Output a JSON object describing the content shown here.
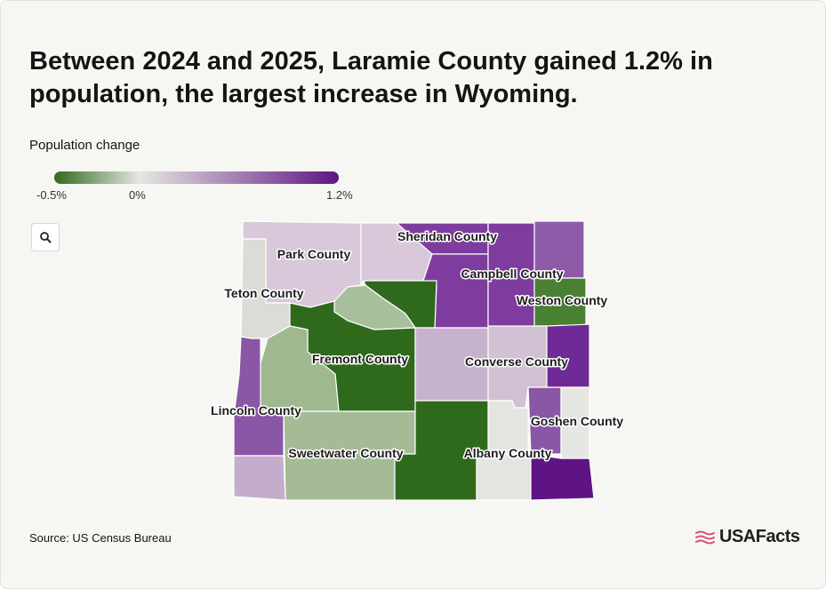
{
  "title": "Between 2024 and 2025, Laramie County gained 1.2% in population, the largest increase in Wyoming.",
  "legend": {
    "title": "Population change",
    "min_label": "-0.5%",
    "mid_label": "0%",
    "max_label": "1.2%",
    "min_color": "#2f6a1c",
    "mid_color": "#e6e6e2",
    "max_color": "#5e1583"
  },
  "zoom": {
    "icon": "search-icon"
  },
  "map": {
    "region": "Wyoming",
    "counties": [
      {
        "id": "park",
        "label": "Park County",
        "color": "#d9c8da"
      },
      {
        "id": "bighorn",
        "label": "",
        "color": "#d9c8da"
      },
      {
        "id": "sheridan",
        "label": "Sheridan County",
        "color": "#7e3d9e"
      },
      {
        "id": "johnson",
        "label": "",
        "color": "#7e3d9e"
      },
      {
        "id": "campbell",
        "label": "Campbell County",
        "color": "#7e3d9e"
      },
      {
        "id": "crook",
        "label": "",
        "color": "#8e5aa8"
      },
      {
        "id": "weston",
        "label": "Weston County",
        "color": "#4a8032"
      },
      {
        "id": "teton",
        "label": "Teton County",
        "color": "#dcdcd6"
      },
      {
        "id": "washakie",
        "label": "",
        "color": "#2f6a1c"
      },
      {
        "id": "hotsprings",
        "label": "",
        "color": "#a8bf9c"
      },
      {
        "id": "fremont",
        "label": "Fremont County",
        "color": "#2f6a1c"
      },
      {
        "id": "natrona",
        "label": "",
        "color": "#c6b2cc"
      },
      {
        "id": "converse",
        "label": "Converse County",
        "color": "#d2c0d4"
      },
      {
        "id": "niobrara",
        "label": "",
        "color": "#6f2a96"
      },
      {
        "id": "sublette",
        "label": "",
        "color": "#9fb890"
      },
      {
        "id": "lincoln",
        "label": "Lincoln County",
        "color": "#8a56a6"
      },
      {
        "id": "platte",
        "label": "",
        "color": "#e4e4e0"
      },
      {
        "id": "goshen",
        "label": "Goshen County",
        "color": "#8a56a6"
      },
      {
        "id": "goshen_east",
        "label": "",
        "color": "#e6e6e2"
      },
      {
        "id": "sweetwater",
        "label": "Sweetwater County",
        "color": "#a4bb96"
      },
      {
        "id": "carbon",
        "label": "",
        "color": "#2f6a1c"
      },
      {
        "id": "albany",
        "label": "Albany County",
        "color": "#e4e4e0"
      },
      {
        "id": "laramie",
        "label": "",
        "color": "#5e1583"
      },
      {
        "id": "uinta",
        "label": "",
        "color": "#c4adcc"
      }
    ]
  },
  "source": "Source: US Census Bureau",
  "brand": {
    "name": "USAFacts",
    "color": "#d94f7d"
  }
}
